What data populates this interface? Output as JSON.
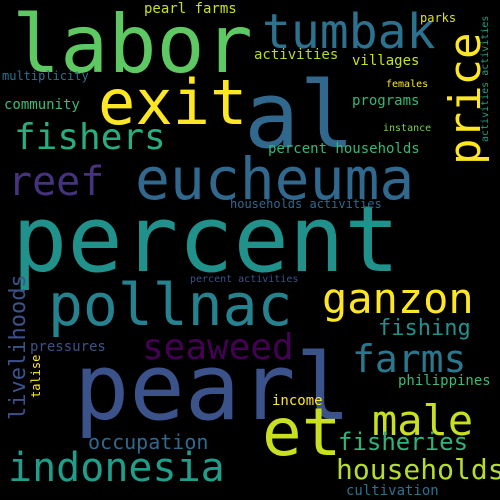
{
  "words": {
    "percent": {
      "text": "percent",
      "color": "#21918c"
    },
    "pearl": {
      "text": "pearl",
      "color": "#3b528b"
    },
    "labor": {
      "text": "labor",
      "color": "#5ec962"
    },
    "al": {
      "text": "al",
      "color": "#31688e"
    },
    "eucheuma": {
      "text": "eucheuma",
      "color": "#31688e"
    },
    "tumbak": {
      "text": "tumbak",
      "color": "#2c728e"
    },
    "exit": {
      "text": "exit",
      "color": "#fde725"
    },
    "fishers": {
      "text": "fishers",
      "color": "#29af7f"
    },
    "reef": {
      "text": "reef",
      "color": "#46327e"
    },
    "pollnac": {
      "text": "pollnac",
      "color": "#26828e"
    },
    "ganzon": {
      "text": "ganzon",
      "color": "#fde725"
    },
    "seaweed": {
      "text": "seaweed",
      "color": "#440154"
    },
    "farms": {
      "text": "farms",
      "color": "#2a788e"
    },
    "male": {
      "text": "male",
      "color": "#c8e020"
    },
    "et": {
      "text": "et",
      "color": "#c8e020"
    },
    "indonesia": {
      "text": "indonesia",
      "color": "#1f9e89"
    },
    "households": {
      "text": "households",
      "color": "#b5de2b"
    },
    "fisheries": {
      "text": "fisheries",
      "color": "#2fb47c"
    },
    "fishing": {
      "text": "fishing",
      "color": "#21918c"
    },
    "occupation": {
      "text": "occupation",
      "color": "#31688e"
    },
    "price": {
      "text": "price",
      "color": "#fde725"
    },
    "livelihoods": {
      "text": "livelihoods",
      "color": "#3b528b"
    },
    "activities_vertical": {
      "text": "activities activities",
      "color": "#1f9e89"
    },
    "talise": {
      "text": "talise",
      "color": "#fde725"
    },
    "pearl_farms": {
      "text": "pearl farms",
      "color": "#c8e020"
    },
    "parks": {
      "text": "parks",
      "color": "#dde318"
    },
    "activities": {
      "text": "activities",
      "color": "#b5de2b"
    },
    "villages": {
      "text": "villages",
      "color": "#c8e020"
    },
    "multiplicity": {
      "text": "multiplicity",
      "color": "#2c728e"
    },
    "females": {
      "text": "females",
      "color": "#fde725"
    },
    "community": {
      "text": "community",
      "color": "#3bbb75"
    },
    "programs": {
      "text": "programs",
      "color": "#35b779"
    },
    "instance": {
      "text": "instance",
      "color": "#7ad151"
    },
    "percent_households": {
      "text": "percent households",
      "color": "#35b779"
    },
    "households_activities": {
      "text": "households activities",
      "color": "#31688e"
    },
    "percent_activities": {
      "text": "percent activities",
      "color": "#3b528b"
    },
    "pressures": {
      "text": "pressures",
      "color": "#3b528b"
    },
    "philippines": {
      "text": "philippines",
      "color": "#3bbb75"
    },
    "income": {
      "text": "income",
      "color": "#fde725"
    },
    "cultivation": {
      "text": "cultivation",
      "color": "#2c728e"
    }
  }
}
